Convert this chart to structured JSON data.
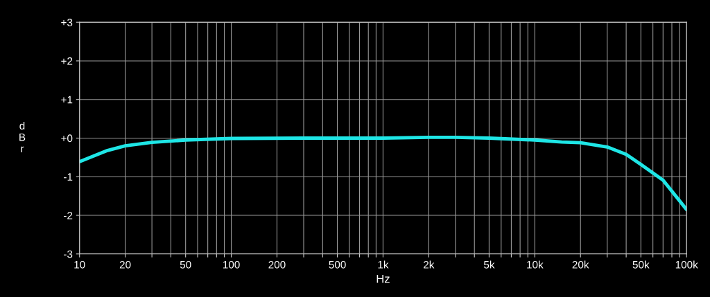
{
  "chart_data": {
    "type": "line",
    "xlabel": "Hz",
    "ylabel": "d\nB\nr",
    "log": "x",
    "grid": true,
    "marker": "none",
    "line_style": "solid",
    "x": [
      10,
      15,
      20,
      30,
      50,
      100,
      300,
      1000,
      2000,
      3000,
      5000,
      10000,
      15000,
      20000,
      30000,
      40000,
      50000,
      70000,
      100000
    ],
    "series": [
      {
        "color": "#1ee6e6",
        "values": [
          -0.61,
          -0.33,
          -0.2,
          -0.11,
          -0.05,
          -0.01,
          0,
          0,
          0.02,
          0.02,
          0,
          -0.05,
          -0.1,
          -0.12,
          -0.23,
          -0.42,
          -0.68,
          -1.09,
          -1.85
        ]
      }
    ],
    "xlim": [
      10,
      100000
    ],
    "xticks": [
      {
        "value": 10,
        "label": "10"
      },
      {
        "value": 20,
        "label": "20"
      },
      {
        "value": 30,
        "label": null
      },
      {
        "value": 40,
        "label": null
      },
      {
        "value": 50,
        "label": "50"
      },
      {
        "value": 60,
        "label": null
      },
      {
        "value": 70,
        "label": null
      },
      {
        "value": 80,
        "label": null
      },
      {
        "value": 90,
        "label": null
      },
      {
        "value": 100,
        "label": "100"
      },
      {
        "value": 200,
        "label": "200"
      },
      {
        "value": 300,
        "label": null
      },
      {
        "value": 400,
        "label": null
      },
      {
        "value": 500,
        "label": "500"
      },
      {
        "value": 600,
        "label": null
      },
      {
        "value": 700,
        "label": null
      },
      {
        "value": 800,
        "label": null
      },
      {
        "value": 900,
        "label": null
      },
      {
        "value": 1000,
        "label": "1k"
      },
      {
        "value": 2000,
        "label": "2k"
      },
      {
        "value": 3000,
        "label": null
      },
      {
        "value": 4000,
        "label": null
      },
      {
        "value": 5000,
        "label": "5k"
      },
      {
        "value": 6000,
        "label": null
      },
      {
        "value": 7000,
        "label": null
      },
      {
        "value": 8000,
        "label": null
      },
      {
        "value": 9000,
        "label": null
      },
      {
        "value": 10000,
        "label": "10k"
      },
      {
        "value": 20000,
        "label": "20k"
      },
      {
        "value": 30000,
        "label": null
      },
      {
        "value": 40000,
        "label": null
      },
      {
        "value": 50000,
        "label": "50k"
      },
      {
        "value": 60000,
        "label": null
      },
      {
        "value": 70000,
        "label": null
      },
      {
        "value": 80000,
        "label": null
      },
      {
        "value": 90000,
        "label": null
      },
      {
        "value": 100000,
        "label": "100k"
      }
    ],
    "ylim": [
      -3,
      3
    ],
    "yticks": [
      {
        "value": -3,
        "label": "-3"
      },
      {
        "value": -2,
        "label": "-2"
      },
      {
        "value": -1,
        "label": "-1"
      },
      {
        "value": 0,
        "label": "+0"
      },
      {
        "value": 1,
        "label": "+1"
      },
      {
        "value": 2,
        "label": "+2"
      },
      {
        "value": 3,
        "label": "+3"
      }
    ]
  }
}
